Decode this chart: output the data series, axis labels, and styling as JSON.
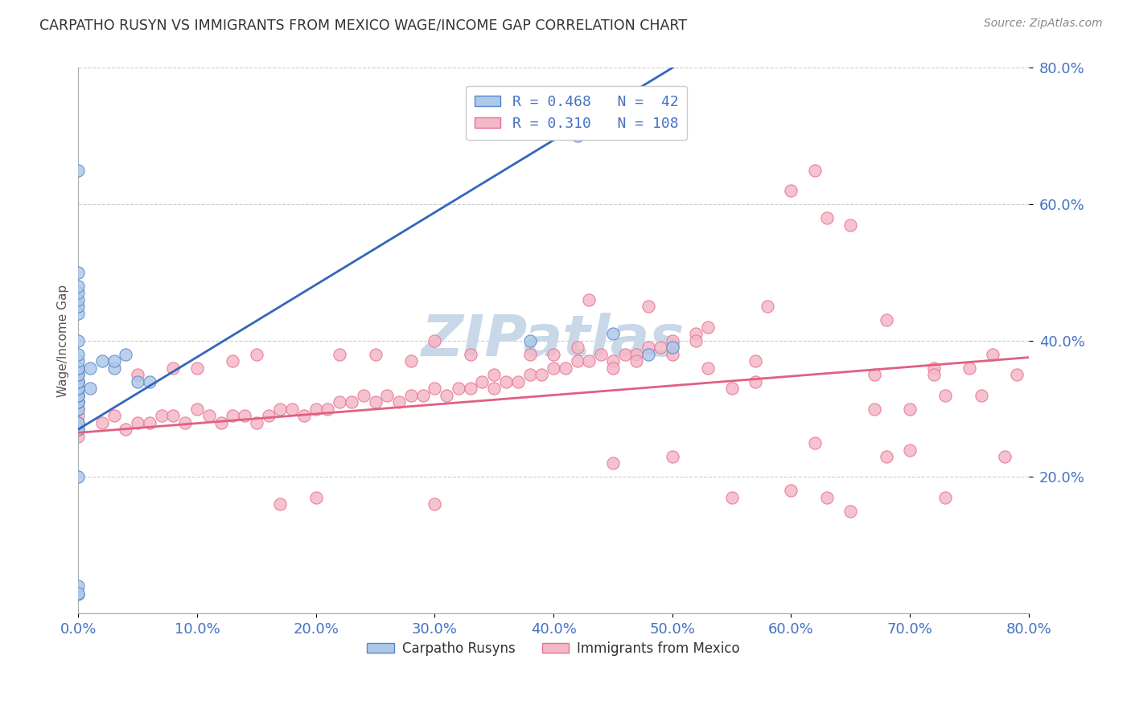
{
  "title": "CARPATHO RUSYN VS IMMIGRANTS FROM MEXICO WAGE/INCOME GAP CORRELATION CHART",
  "source": "Source: ZipAtlas.com",
  "ylabel": "Wage/Income Gap",
  "x_min": 0.0,
  "x_max": 0.8,
  "y_min": 0.0,
  "y_max": 0.8,
  "blue_R": 0.468,
  "blue_N": 42,
  "pink_R": 0.31,
  "pink_N": 108,
  "blue_color": "#aec8e8",
  "pink_color": "#f4b8c8",
  "blue_edge_color": "#5588cc",
  "pink_edge_color": "#e87090",
  "blue_line_color": "#3366bb",
  "pink_line_color": "#e06080",
  "watermark": "ZIPatlas",
  "watermark_color": "#c8d8e8",
  "tick_color": "#4472c4",
  "legend_label_1": "R = 0.468   N =  42",
  "legend_label_2": "R = 0.310   N = 108",
  "bottom_label_1": "Carpatho Rusyns",
  "bottom_label_2": "Immigrants from Mexico",
  "blue_scatter_x": [
    0.0,
    0.0,
    0.0,
    0.0,
    0.0,
    0.0,
    0.0,
    0.0,
    0.0,
    0.0,
    0.0,
    0.0,
    0.0,
    0.0,
    0.0,
    0.0,
    0.0,
    0.0,
    0.0,
    0.0,
    0.0,
    0.0,
    0.0,
    0.0,
    0.0,
    0.0,
    0.0,
    0.01,
    0.01,
    0.02,
    0.03,
    0.03,
    0.04,
    0.05,
    0.06,
    0.38,
    0.42,
    0.45,
    0.48,
    0.5,
    0.0,
    0.0
  ],
  "blue_scatter_y": [
    0.028,
    0.04,
    0.27,
    0.28,
    0.3,
    0.31,
    0.31,
    0.32,
    0.32,
    0.33,
    0.33,
    0.34,
    0.34,
    0.35,
    0.35,
    0.36,
    0.36,
    0.37,
    0.38,
    0.4,
    0.44,
    0.45,
    0.46,
    0.47,
    0.48,
    0.5,
    0.65,
    0.33,
    0.36,
    0.37,
    0.36,
    0.37,
    0.38,
    0.34,
    0.34,
    0.4,
    0.7,
    0.41,
    0.38,
    0.39,
    0.2,
    0.03
  ],
  "pink_scatter_x": [
    0.0,
    0.0,
    0.0,
    0.0,
    0.0,
    0.0,
    0.0,
    0.0,
    0.0,
    0.02,
    0.03,
    0.04,
    0.05,
    0.06,
    0.07,
    0.08,
    0.09,
    0.1,
    0.11,
    0.12,
    0.13,
    0.14,
    0.15,
    0.16,
    0.17,
    0.18,
    0.19,
    0.2,
    0.21,
    0.22,
    0.23,
    0.24,
    0.25,
    0.26,
    0.27,
    0.28,
    0.29,
    0.3,
    0.31,
    0.32,
    0.33,
    0.34,
    0.35,
    0.36,
    0.37,
    0.38,
    0.39,
    0.4,
    0.41,
    0.42,
    0.43,
    0.44,
    0.45,
    0.46,
    0.47,
    0.48,
    0.49,
    0.5,
    0.52,
    0.53,
    0.05,
    0.08,
    0.1,
    0.13,
    0.15,
    0.17,
    0.2,
    0.22,
    0.25,
    0.28,
    0.3,
    0.33,
    0.35,
    0.38,
    0.4,
    0.42,
    0.45,
    0.47,
    0.5,
    0.53,
    0.55,
    0.57,
    0.58,
    0.6,
    0.62,
    0.63,
    0.65,
    0.67,
    0.68,
    0.7,
    0.72,
    0.73,
    0.75,
    0.76,
    0.78,
    0.79,
    0.45,
    0.5,
    0.55,
    0.6,
    0.63,
    0.65,
    0.68,
    0.7,
    0.73,
    0.43,
    0.48,
    0.52,
    0.57,
    0.62,
    0.67,
    0.72,
    0.77,
    0.3
  ],
  "pink_scatter_y": [
    0.26,
    0.27,
    0.28,
    0.29,
    0.3,
    0.31,
    0.32,
    0.33,
    0.34,
    0.28,
    0.29,
    0.27,
    0.28,
    0.28,
    0.29,
    0.29,
    0.28,
    0.3,
    0.29,
    0.28,
    0.29,
    0.29,
    0.28,
    0.29,
    0.3,
    0.3,
    0.29,
    0.3,
    0.3,
    0.31,
    0.31,
    0.32,
    0.31,
    0.32,
    0.31,
    0.32,
    0.32,
    0.33,
    0.32,
    0.33,
    0.33,
    0.34,
    0.33,
    0.34,
    0.34,
    0.35,
    0.35,
    0.36,
    0.36,
    0.37,
    0.37,
    0.38,
    0.37,
    0.38,
    0.38,
    0.39,
    0.39,
    0.4,
    0.41,
    0.42,
    0.35,
    0.36,
    0.36,
    0.37,
    0.38,
    0.16,
    0.17,
    0.38,
    0.38,
    0.37,
    0.4,
    0.38,
    0.35,
    0.38,
    0.38,
    0.39,
    0.36,
    0.37,
    0.38,
    0.36,
    0.33,
    0.34,
    0.45,
    0.62,
    0.65,
    0.58,
    0.57,
    0.35,
    0.43,
    0.3,
    0.36,
    0.32,
    0.36,
    0.32,
    0.23,
    0.35,
    0.22,
    0.23,
    0.17,
    0.18,
    0.17,
    0.15,
    0.23,
    0.24,
    0.17,
    0.46,
    0.45,
    0.4,
    0.37,
    0.25,
    0.3,
    0.35,
    0.38,
    0.16
  ]
}
